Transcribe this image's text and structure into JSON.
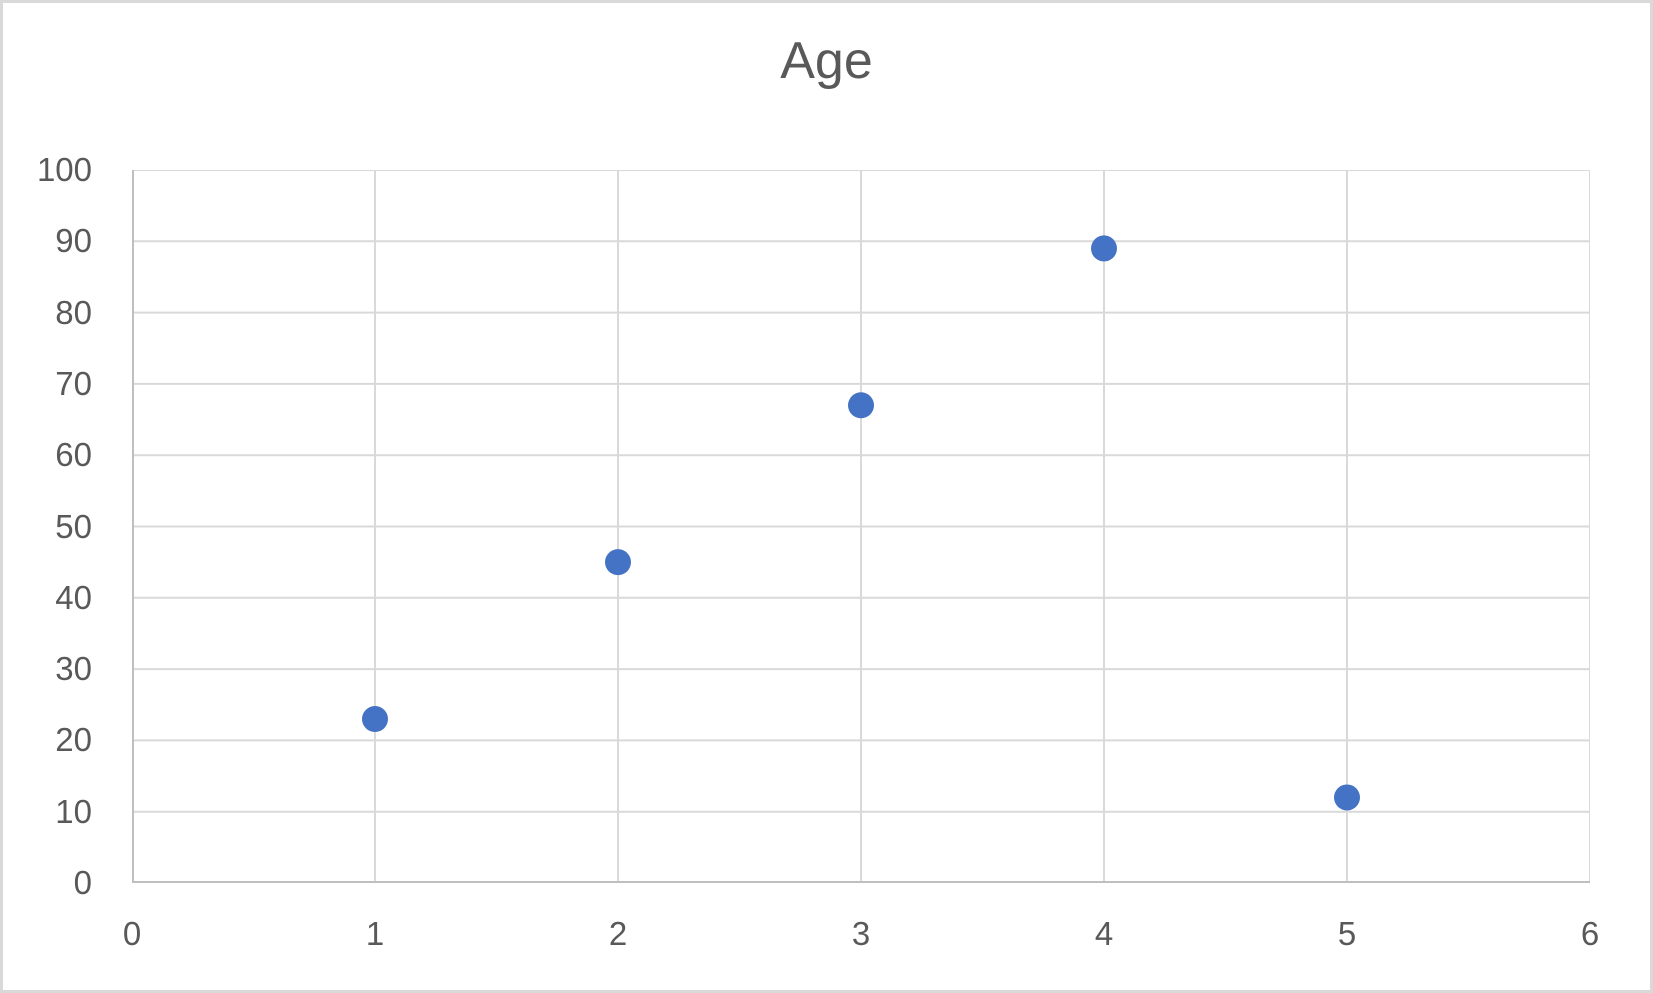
{
  "window": {
    "background_color": "#ffffff",
    "frame_border_color": "#d9d9d9"
  },
  "chart_data": {
    "type": "scatter",
    "title": "Age",
    "series": [
      {
        "name": "Age",
        "points": [
          {
            "x": 1,
            "y": 23
          },
          {
            "x": 2,
            "y": 45
          },
          {
            "x": 3,
            "y": 67
          },
          {
            "x": 4,
            "y": 89
          },
          {
            "x": 5,
            "y": 12
          }
        ]
      }
    ],
    "xlabel": "",
    "ylabel": "",
    "xlim": [
      0,
      6
    ],
    "ylim": [
      0,
      100
    ],
    "x_ticks": [
      0,
      1,
      2,
      3,
      4,
      5,
      6
    ],
    "y_ticks": [
      0,
      10,
      20,
      30,
      40,
      50,
      60,
      70,
      80,
      90,
      100
    ],
    "grid": true,
    "legend_position": "none",
    "marker_color": "#4472c4",
    "marker_radius_px": 13,
    "gridline_color": "#d9d9d9",
    "axis_line_color": "#bfbfbf",
    "tick_label_color": "#595959",
    "title_color": "#595959"
  }
}
